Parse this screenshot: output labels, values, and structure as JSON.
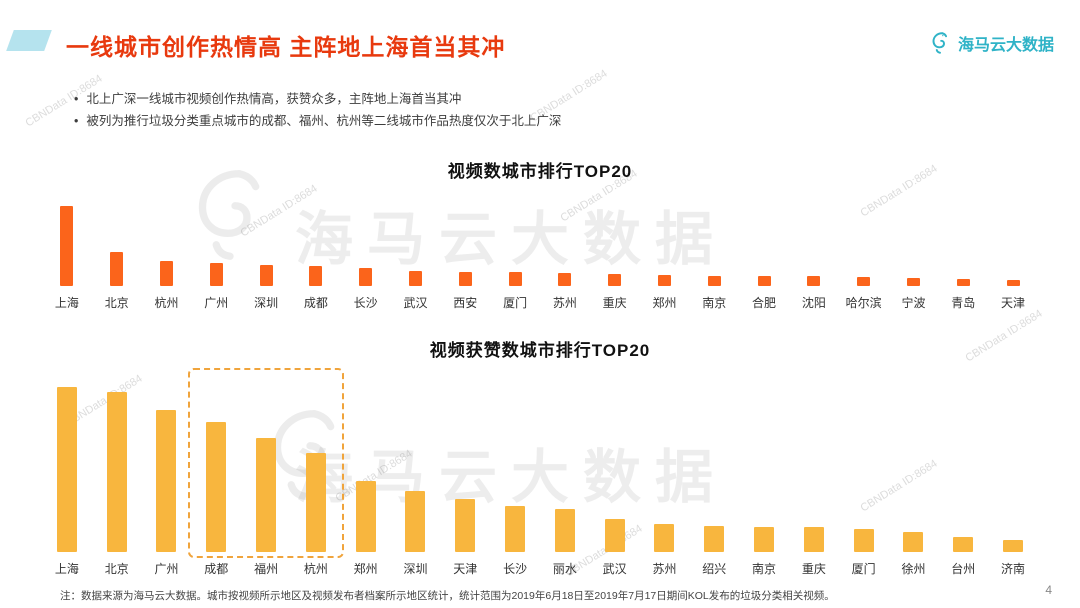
{
  "page": {
    "title": "一线城市创作热情高 主阵地上海首当其冲",
    "note": "注：数据来源为海马云大数据。城市按视频所示地区及视频发布者档案所示地区统计，统计范围为2019年6月18日至2019年7月17日期间KOL发布的垃圾分类相关视频。",
    "page_number": "4"
  },
  "logo": {
    "text": "海马云大数据",
    "color": "#2fb3c7"
  },
  "bullets": [
    "北上广深一线城市视频创作热情高，获赞众多，主阵地上海首当其冲",
    "被列为推行垃圾分类重点城市的成都、福州、杭州等二线城市作品热度仅次于北上广深"
  ],
  "watermark": {
    "diagonal_text": "CBNData ID:8684",
    "big_text": "海马云大数据"
  },
  "colors": {
    "title_red": "#e8390e",
    "chart1_bar": "#fb641b",
    "chart2_bar": "#f8b63e",
    "highlight_dash": "#f0a43c",
    "accent_teal": "#b5e3ee"
  },
  "chart_data": [
    {
      "type": "bar",
      "title": "视频数城市排行TOP20",
      "categories": [
        "上海",
        "北京",
        "杭州",
        "广州",
        "深圳",
        "成都",
        "长沙",
        "武汉",
        "西安",
        "厦门",
        "苏州",
        "重庆",
        "郑州",
        "南京",
        "合肥",
        "沈阳",
        "哈尔滨",
        "宁波",
        "青岛",
        "天津"
      ],
      "values": [
        100,
        42,
        31,
        29,
        26,
        25,
        23,
        19,
        18,
        17,
        16,
        15,
        14,
        13,
        12,
        12,
        11,
        10,
        9,
        8
      ],
      "bar_color": "#fb641b",
      "unit": "relative height (no y-axis shown)",
      "ylim": [
        0,
        100
      ],
      "grid": false,
      "legend": "none"
    },
    {
      "type": "bar",
      "title": "视频获赞数城市排行TOP20",
      "categories": [
        "上海",
        "北京",
        "广州",
        "成都",
        "福州",
        "杭州",
        "郑州",
        "深圳",
        "天津",
        "长沙",
        "丽水",
        "武汉",
        "苏州",
        "绍兴",
        "南京",
        "重庆",
        "厦门",
        "徐州",
        "台州",
        "济南"
      ],
      "values": [
        100,
        97,
        86,
        79,
        69,
        60,
        43,
        37,
        32,
        28,
        26,
        20,
        17,
        16,
        15,
        15,
        14,
        12,
        9,
        7
      ],
      "bar_color": "#f8b63e",
      "highlight": {
        "from_index": 3,
        "to_index": 5,
        "style": "dashed-box",
        "color": "#f0a43c",
        "cities": [
          "成都",
          "福州",
          "杭州"
        ]
      },
      "unit": "relative height (no y-axis shown)",
      "ylim": [
        0,
        100
      ],
      "grid": false,
      "legend": "none"
    }
  ]
}
